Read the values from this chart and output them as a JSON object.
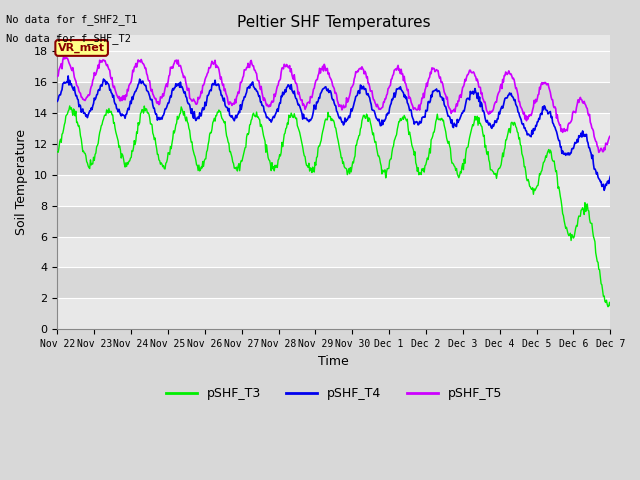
{
  "title": "Peltier SHF Temperatures",
  "xlabel": "Time",
  "ylabel": "Soil Temperature",
  "annotations": [
    "No data for f_SHF2_T1",
    "No data for f_SHF_T2"
  ],
  "vr_met_label": "VR_met",
  "ylim": [
    0,
    19
  ],
  "yticks": [
    0,
    2,
    4,
    6,
    8,
    10,
    12,
    14,
    16,
    18
  ],
  "xtick_labels": [
    "Nov 22",
    "Nov 23",
    "Nov 24",
    "Nov 25",
    "Nov 26",
    "Nov 27",
    "Nov 28",
    "Nov 29",
    "Nov 30",
    "Dec 1",
    "Dec 2",
    "Dec 3",
    "Dec 4",
    "Dec 5",
    "Dec 6",
    "Dec 7"
  ],
  "legend_entries": [
    "pSHF_T3",
    "pSHF_T4",
    "pSHF_T5"
  ],
  "colors": {
    "pSHF_T3": "#00EE00",
    "pSHF_T4": "#0000EE",
    "pSHF_T5": "#CC00FF"
  },
  "bg_color": "#D8D8D8",
  "plot_bg_light": "#E8E8E8",
  "plot_bg_dark": "#D8D8D8",
  "grid_color": "#FFFFFF"
}
